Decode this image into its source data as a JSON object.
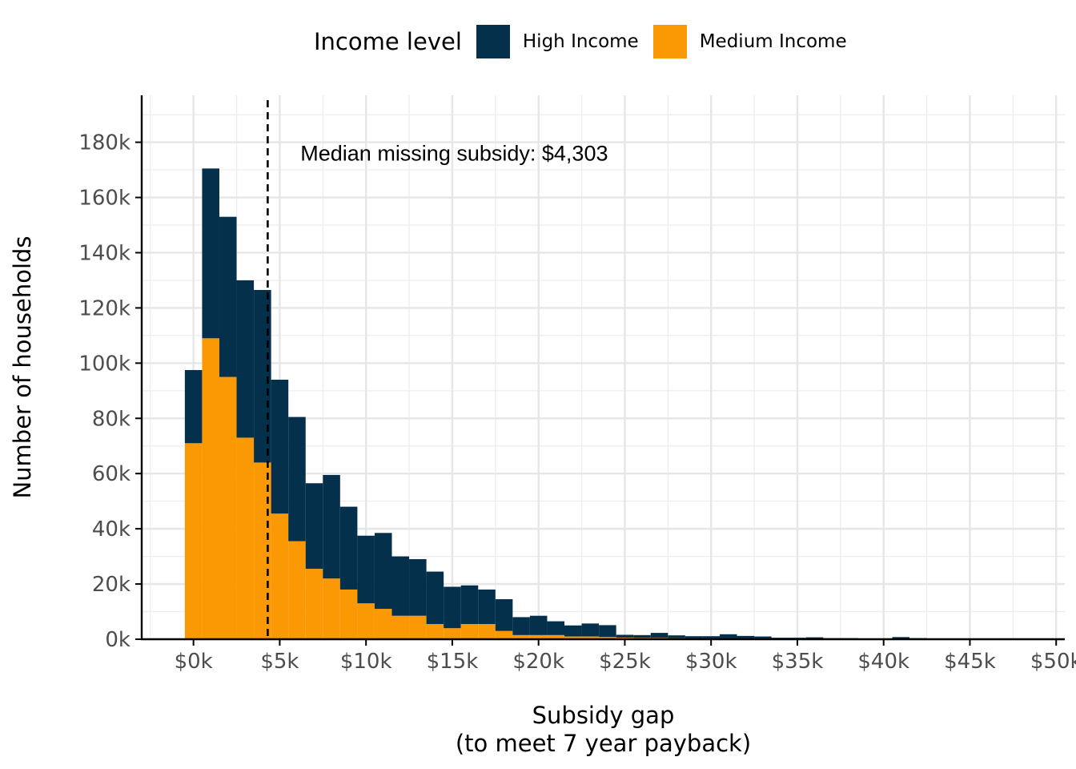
{
  "chart_data": {
    "type": "bar",
    "subtype": "stacked-histogram",
    "legend": {
      "title": "Income level",
      "position": "top",
      "entries": [
        {
          "name": "High Income",
          "color": "#04304b"
        },
        {
          "name": "Medium Income",
          "color": "#fb9905"
        }
      ]
    },
    "xlabel_line1": "Subsidy gap",
    "xlabel_line2": "(to meet 7 year payback)",
    "ylabel": "Number of households",
    "xlim": [
      -3000,
      50500
    ],
    "ylim": [
      0,
      197000
    ],
    "x_ticks": [
      0,
      5000,
      10000,
      15000,
      20000,
      25000,
      30000,
      35000,
      40000,
      45000,
      50000
    ],
    "x_tick_labels": [
      "$0k",
      "$5k",
      "$10k",
      "$15k",
      "$20k",
      "$25k",
      "$30k",
      "$35k",
      "$40k",
      "$45k",
      "$50k"
    ],
    "y_ticks": [
      0,
      20000,
      40000,
      60000,
      80000,
      100000,
      120000,
      140000,
      160000,
      180000
    ],
    "y_tick_labels": [
      "0k",
      "20k",
      "40k",
      "60k",
      "80k",
      "100k",
      "120k",
      "140k",
      "160k",
      "180k"
    ],
    "grid": true,
    "bin_width": 1000,
    "bin_starts": [
      -500,
      500,
      1500,
      2500,
      3500,
      4500,
      5500,
      6500,
      7500,
      8500,
      9500,
      10500,
      11500,
      12500,
      13500,
      14500,
      15500,
      16500,
      17500,
      18500,
      19500,
      20500,
      21500,
      22500,
      23500,
      24500,
      25500,
      26500,
      27500,
      28500,
      29500,
      30500,
      31500,
      32500,
      33500,
      34500,
      35500,
      36500,
      37500,
      38500,
      39500,
      40500,
      41500,
      42500,
      43500,
      44500,
      45500,
      46500,
      47500,
      48500,
      49500
    ],
    "series": [
      {
        "name": "Medium Income",
        "color": "#fb9905",
        "values": [
          71000,
          109000,
          95000,
          73000,
          64000,
          45500,
          35500,
          25500,
          22000,
          18000,
          13000,
          11000,
          8500,
          8500,
          5500,
          4000,
          5500,
          5500,
          3000,
          1500,
          1500,
          1500,
          1000,
          1000,
          800,
          600,
          500,
          500,
          400,
          300,
          300,
          300,
          200,
          200,
          150,
          150,
          100,
          100,
          100,
          100,
          100,
          80,
          80,
          60,
          60,
          60,
          50,
          50,
          40,
          40,
          30
        ]
      },
      {
        "name": "High Income",
        "color": "#04304b",
        "values": [
          26500,
          61500,
          58000,
          57000,
          62500,
          48500,
          45000,
          31000,
          37500,
          30000,
          24500,
          27500,
          21500,
          20500,
          19000,
          15000,
          14000,
          12500,
          11500,
          6500,
          7000,
          5000,
          4000,
          4700,
          4300,
          1000,
          1000,
          1800,
          1000,
          800,
          800,
          1500,
          1000,
          800,
          400,
          400,
          600,
          300,
          300,
          200,
          200,
          700,
          320,
          200,
          200,
          200,
          150,
          250,
          150,
          100,
          80
        ]
      }
    ],
    "reference_line": {
      "x": 4303,
      "style": "dashed"
    },
    "annotation": {
      "text": "Median missing subsidy: $4,303",
      "x": 6200,
      "y": 176000
    }
  }
}
